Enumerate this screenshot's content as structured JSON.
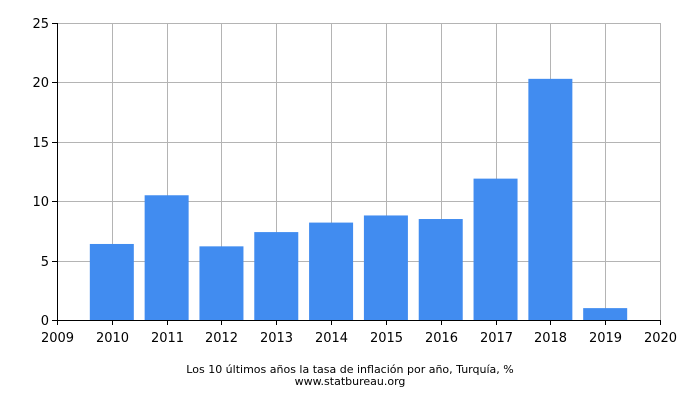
{
  "chart_data": {
    "type": "bar",
    "categories": [
      "2010",
      "2011",
      "2012",
      "2013",
      "2014",
      "2015",
      "2016",
      "2017",
      "2018",
      "2019"
    ],
    "values": [
      6.4,
      10.5,
      6.2,
      7.4,
      8.2,
      8.8,
      8.5,
      11.9,
      20.3,
      1.0
    ],
    "x_ticks": [
      "2009",
      "2010",
      "2011",
      "2012",
      "2013",
      "2014",
      "2015",
      "2016",
      "2017",
      "2018",
      "2019",
      "2020"
    ],
    "y_ticks": [
      0,
      5,
      10,
      15,
      20,
      25
    ],
    "xlim": [
      2009,
      2020
    ],
    "ylim": [
      0,
      25
    ],
    "grid": true,
    "bar_color": "#418cf0",
    "grid_color": "#b4b4b4",
    "title": "Los 10 últimos años la tasa de inflación por año, Turquía, %",
    "source": "www.statbureau.org"
  }
}
